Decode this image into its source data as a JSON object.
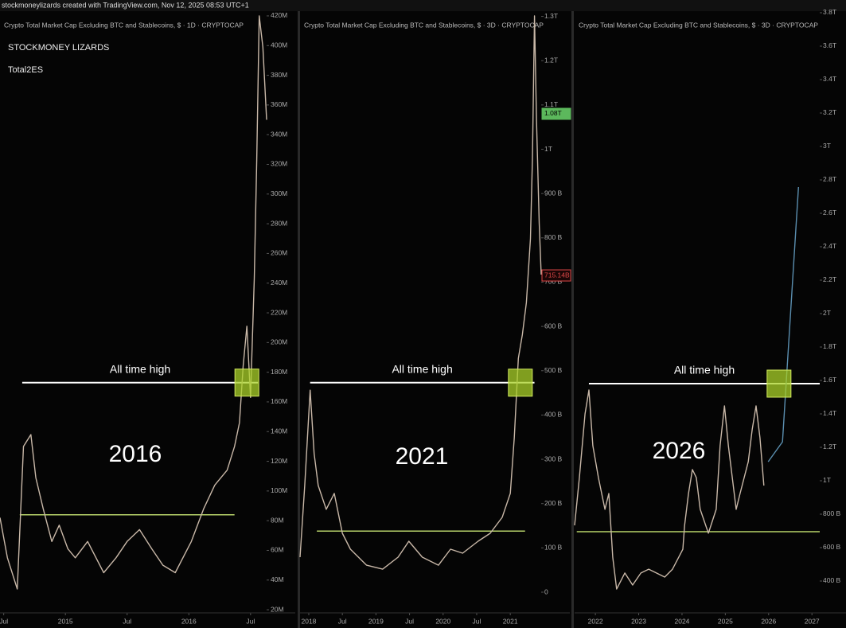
{
  "header": "stockmoneylizards created with TradingView.com, Nov 12, 2025 08:53 UTC+1",
  "chart_data": [
    {
      "type": "line",
      "title": "Crypto Total Market Cap Excluding BTC and Stablecoins, $ · 1D · CRYPTOCAP",
      "labels": [
        "STOCKMONEY LIZARDS",
        "Total2ES"
      ],
      "annotations": [
        "All time high",
        "2016"
      ],
      "xlim": [
        2014.47,
        2016.63
      ],
      "xticks": [
        {
          "value": 2014.5,
          "label": "Jul"
        },
        2015,
        {
          "value": 2015.5,
          "label": "Jul"
        },
        2016,
        {
          "value": 2016.5,
          "label": "Jul"
        }
      ],
      "ylim": [
        17.9,
        423.2
      ],
      "yticks": [
        {
          "value": 20,
          "label": "20M"
        },
        {
          "value": 40,
          "label": "40M"
        },
        {
          "value": 60,
          "label": "60M"
        },
        {
          "value": 80,
          "label": "80M"
        },
        {
          "value": 100,
          "label": "100M"
        },
        {
          "value": 120,
          "label": "120M"
        },
        {
          "value": 140,
          "label": "140M"
        },
        {
          "value": 160,
          "label": "160M"
        },
        {
          "value": 180,
          "label": "180M"
        },
        {
          "value": 200,
          "label": "200M"
        },
        {
          "value": 220,
          "label": "220M"
        },
        {
          "value": 240,
          "label": "240M"
        },
        {
          "value": 260,
          "label": "260M"
        },
        {
          "value": 280,
          "label": "280M"
        },
        {
          "value": 300,
          "label": "300M"
        },
        {
          "value": 320,
          "label": "320M"
        },
        {
          "value": 340,
          "label": "340M"
        },
        {
          "value": 360,
          "label": "360M"
        },
        {
          "value": 380,
          "label": "380M"
        },
        {
          "value": 400,
          "label": "400M"
        },
        {
          "value": 420,
          "label": "420M"
        }
      ],
      "grid": false,
      "series": [
        {
          "color": "#c9b8a8",
          "x": [
            2014.47,
            2014.53,
            2014.61,
            2014.66,
            2014.72,
            2014.76,
            2014.82,
            2014.89,
            2014.95,
            2015.02,
            2015.08,
            2015.18,
            2015.31,
            2015.41,
            2015.5,
            2015.6,
            2015.7,
            2015.79,
            2015.89,
            2016.02,
            2016.12,
            2016.21,
            2016.31,
            2016.37,
            2016.41,
            2016.44,
            2016.47,
            2016.5,
            2016.53,
            2016.55,
            2016.57,
            2016.6,
            2016.63
          ],
          "values": [
            82,
            55,
            34,
            130,
            138,
            109,
            88,
            66,
            77,
            61,
            55,
            66,
            45,
            55,
            66,
            74,
            61,
            50,
            45,
            66,
            88,
            104,
            114,
            130,
            146,
            184,
            211,
            163,
            243,
            323,
            420,
            399,
            350
          ]
        }
      ],
      "hlines": [
        {
          "value": 173,
          "x": [
            2014.65,
            2016.56
          ],
          "color": "#ffffff"
        },
        {
          "value": 84,
          "x": [
            2014.63,
            2016.37
          ],
          "color": "#b8d36a"
        }
      ],
      "highlight": [
        2016.47,
        173
      ]
    },
    {
      "type": "line",
      "title": "Crypto Total Market Cap Excluding BTC and Stablecoins, $ · 3D · CRYPTOCAP",
      "annotations": [
        "All time high",
        "2021"
      ],
      "xlim": [
        2017.87,
        2021.46
      ],
      "xticks": [
        2018,
        {
          "value": 2018.5,
          "label": "Jul"
        },
        2019,
        {
          "value": 2019.5,
          "label": "Jul"
        },
        2020,
        {
          "value": 2020.5,
          "label": "Jul"
        },
        2021
      ],
      "ylim": [
        -46.7,
        1311.8
      ],
      "yticks": [
        0,
        {
          "value": 100,
          "label": "100 B"
        },
        {
          "value": 200,
          "label": "200 B"
        },
        {
          "value": 300,
          "label": "300 B"
        },
        {
          "value": 400,
          "label": "400 B"
        },
        {
          "value": 500,
          "label": "500 B"
        },
        {
          "value": 600,
          "label": "600 B"
        },
        {
          "value": 700,
          "label": "700 B"
        },
        {
          "value": 800,
          "label": "800 B"
        },
        {
          "value": 900,
          "label": "900 B"
        },
        {
          "value": 1000,
          "label": "1T"
        },
        {
          "value": 1100,
          "label": "1.1T"
        },
        {
          "value": 1200,
          "label": "1.2T"
        },
        {
          "value": 1300,
          "label": "1.3T"
        }
      ],
      "grid": false,
      "series": [
        {
          "color": "#c9b8a8",
          "x": [
            2017.87,
            2017.94,
            2018.02,
            2018.08,
            2018.14,
            2018.26,
            2018.38,
            2018.5,
            2018.62,
            2018.86,
            2019.1,
            2019.33,
            2019.49,
            2019.69,
            2019.93,
            2020.11,
            2020.29,
            2020.52,
            2020.7,
            2020.88,
            2021.0,
            2021.06,
            2021.12,
            2021.18,
            2021.24,
            2021.3,
            2021.33,
            2021.36,
            2021.39,
            2021.43,
            2021.46
          ],
          "values": [
            79,
            241,
            456,
            313,
            241,
            187,
            223,
            133,
            97,
            61,
            52,
            79,
            115,
            79,
            61,
            97,
            88,
            115,
            133,
            169,
            223,
            349,
            528,
            582,
            654,
            798,
            978,
            1301,
            1067,
            834,
            717
          ]
        }
      ],
      "hlines": [
        {
          "value": 473,
          "x": [
            2018.02,
            2021.36
          ],
          "color": "#ffffff"
        },
        {
          "value": 138,
          "x": [
            2018.12,
            2021.22
          ],
          "color": "#b8d36a"
        }
      ],
      "highlight": [
        2021.15,
        473
      ],
      "price_labels": [
        {
          "value": 1080,
          "label": "1.08T",
          "color": "#5cb85c"
        },
        {
          "value": 715.14,
          "label": "715.14B",
          "color": "#e04848"
        }
      ]
    },
    {
      "type": "line",
      "title": "Crypto Total Market Cap Excluding BTC and Stablecoins, $ · 3D · CRYPTOCAP",
      "annotations": [
        "All time high",
        "2026"
      ],
      "xlim": [
        2021.52,
        2027.18
      ],
      "xticks": [
        2022,
        2023,
        2024,
        2025,
        2026,
        2027
      ],
      "ylim": [
        209.5,
        3809.5
      ],
      "yticks": [
        {
          "value": 400,
          "label": "400 B"
        },
        {
          "value": 600,
          "label": "600 B"
        },
        {
          "value": 800,
          "label": "800 B"
        },
        {
          "value": 1000,
          "label": "1T"
        },
        {
          "value": 1200,
          "label": "1.2T"
        },
        {
          "value": 1400,
          "label": "1.4T"
        },
        {
          "value": 1600,
          "label": "1.6T"
        },
        {
          "value": 1800,
          "label": "1.8T"
        },
        {
          "value": 2000,
          "label": "2T"
        },
        {
          "value": 2200,
          "label": "2.2T"
        },
        {
          "value": 2400,
          "label": "2.4T"
        },
        {
          "value": 2600,
          "label": "2.6T"
        },
        {
          "value": 2800,
          "label": "2.8T"
        },
        {
          "value": 3000,
          "label": "3T"
        },
        {
          "value": 3200,
          "label": "3.2T"
        },
        {
          "value": 3400,
          "label": "3.4T"
        },
        {
          "value": 3600,
          "label": "3.6T"
        },
        {
          "value": 3800,
          "label": "3.8T"
        }
      ],
      "grid": false,
      "series": [
        {
          "color": "#c9b8a8",
          "x": [
            2021.52,
            2021.63,
            2021.76,
            2021.85,
            2021.94,
            2022.07,
            2022.22,
            2022.31,
            2022.4,
            2022.49,
            2022.68,
            2022.86,
            2023.05,
            2023.23,
            2023.41,
            2023.6,
            2023.78,
            2024.02,
            2024.06,
            2024.15,
            2024.24,
            2024.33,
            2024.42,
            2024.61,
            2024.79,
            2024.88,
            2024.98,
            2025.07,
            2025.25,
            2025.34,
            2025.53,
            2025.62,
            2025.71,
            2025.8,
            2025.89
          ],
          "values": [
            733,
            1019,
            1400,
            1543,
            1210,
            1019,
            829,
            924,
            543,
            352,
            448,
            376,
            448,
            471,
            448,
            424,
            471,
            590,
            733,
            924,
            1067,
            1019,
            829,
            686,
            829,
            1210,
            1448,
            1210,
            829,
            924,
            1114,
            1305,
            1448,
            1257,
            971
          ]
        },
        {
          "color": "#5b8fb0",
          "x": [
            2025.99,
            2026.32,
            2026.69
          ],
          "values": [
            1114,
            1233,
            2757
          ]
        }
      ],
      "hlines": [
        {
          "value": 1581,
          "x": [
            2021.85,
            2027.18
          ],
          "color": "#ffffff"
        },
        {
          "value": 695,
          "x": [
            2021.57,
            2027.18
          ],
          "color": "#b8d36a"
        }
      ],
      "highlight": [
        2026.24,
        1581
      ]
    }
  ]
}
